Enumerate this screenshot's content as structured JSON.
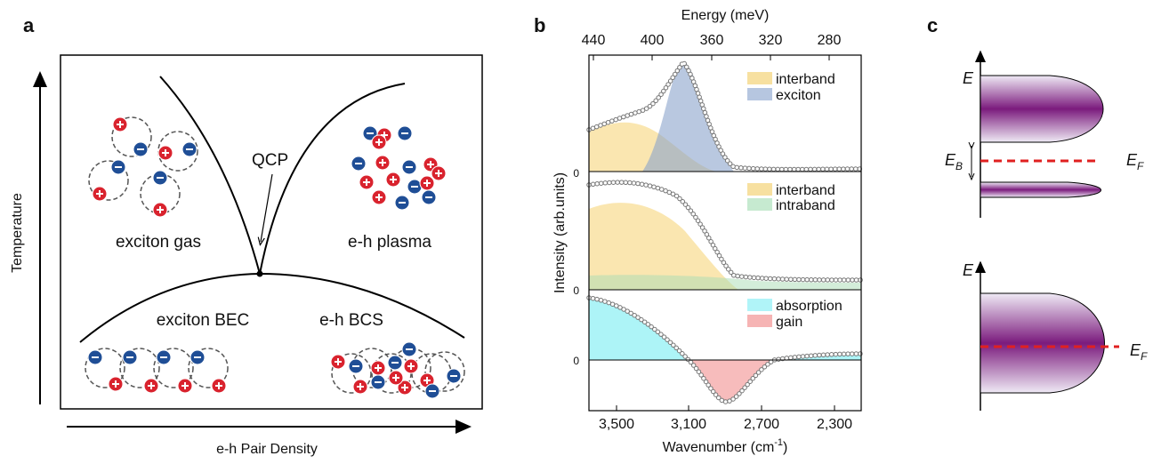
{
  "panel_a": {
    "label": "a",
    "y_axis": "Temperature",
    "x_axis": "e-h Pair Density",
    "qcp": "QCP",
    "regions": [
      "exciton gas",
      "e-h plasma",
      "exciton BEC",
      "e-h BCS"
    ]
  },
  "panel_b": {
    "label": "b",
    "top_axis_title": "Energy (meV)",
    "top_ticks": [
      "440",
      "400",
      "360",
      "320",
      "280"
    ],
    "bottom_axis_title": [
      "Wavenumber (cm",
      "-1",
      ")"
    ],
    "bottom_ticks": [
      "3,500",
      "3,100",
      "2,700",
      "2,300"
    ],
    "y_axis_title": "Intensity (arb.units)",
    "zero_labels": [
      "0",
      "0",
      "0"
    ],
    "legends": [
      [
        "interband",
        "exciton"
      ],
      [
        "interband",
        "intraband"
      ],
      [
        "absorption",
        "gain"
      ]
    ]
  },
  "panel_c": {
    "label": "c",
    "top": {
      "energy": "E",
      "binding": {
        "symbol": "E",
        "subscript": "B"
      },
      "fermi": {
        "symbol": "E",
        "subscript": "F"
      }
    },
    "bottom": {
      "energy": "E",
      "fermi": {
        "symbol": "E",
        "subscript": "F"
      }
    }
  }
}
